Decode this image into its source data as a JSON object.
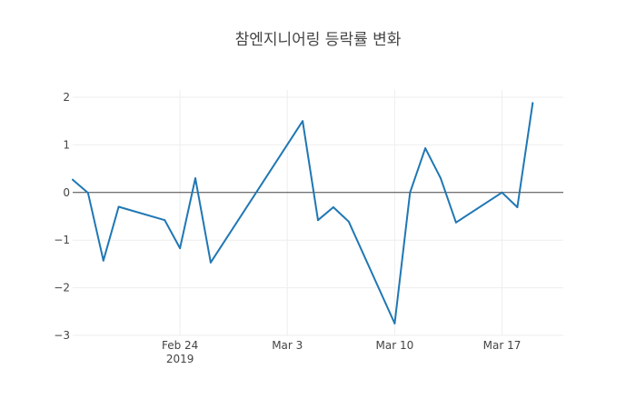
{
  "chart_data": {
    "type": "line",
    "title": "참엔지니어링 등락률 변화",
    "xlabel": "",
    "ylabel": "",
    "ylim": [
      -3,
      2
    ],
    "yticks": [
      {
        "value": 2,
        "label": "2"
      },
      {
        "value": 1,
        "label": "1"
      },
      {
        "value": 0,
        "label": "0"
      },
      {
        "value": -1,
        "label": "−1"
      },
      {
        "value": -2,
        "label": "−2"
      },
      {
        "value": -3,
        "label": "−3"
      }
    ],
    "xlim": [
      "2019-02-17",
      "2019-03-21"
    ],
    "xticks": [
      {
        "value": "2019-02-24",
        "label": "Feb 24",
        "sublabel": "2019"
      },
      {
        "value": "2019-03-03",
        "label": "Mar 3",
        "sublabel": ""
      },
      {
        "value": "2019-03-10",
        "label": "Mar 10",
        "sublabel": ""
      },
      {
        "value": "2019-03-17",
        "label": "Mar 17",
        "sublabel": ""
      }
    ],
    "grid": true,
    "series": [
      {
        "color": "#1f77b4",
        "x": [
          "2019-02-17",
          "2019-02-18",
          "2019-02-19",
          "2019-02-20",
          "2019-02-23",
          "2019-02-24",
          "2019-02-25",
          "2019-02-26",
          "2019-03-04",
          "2019-03-05",
          "2019-03-06",
          "2019-03-07",
          "2019-03-10",
          "2019-03-11",
          "2019-03-12",
          "2019-03-13",
          "2019-03-14",
          "2019-03-17",
          "2019-03-18",
          "2019-03-19"
        ],
        "y": [
          0.27,
          -0.01,
          -1.43,
          -0.3,
          -0.58,
          -1.17,
          0.3,
          -1.47,
          1.5,
          -0.58,
          -0.31,
          -0.61,
          -2.75,
          0.0,
          0.93,
          0.3,
          -0.63,
          0.0,
          -0.31,
          1.88
        ]
      }
    ]
  }
}
